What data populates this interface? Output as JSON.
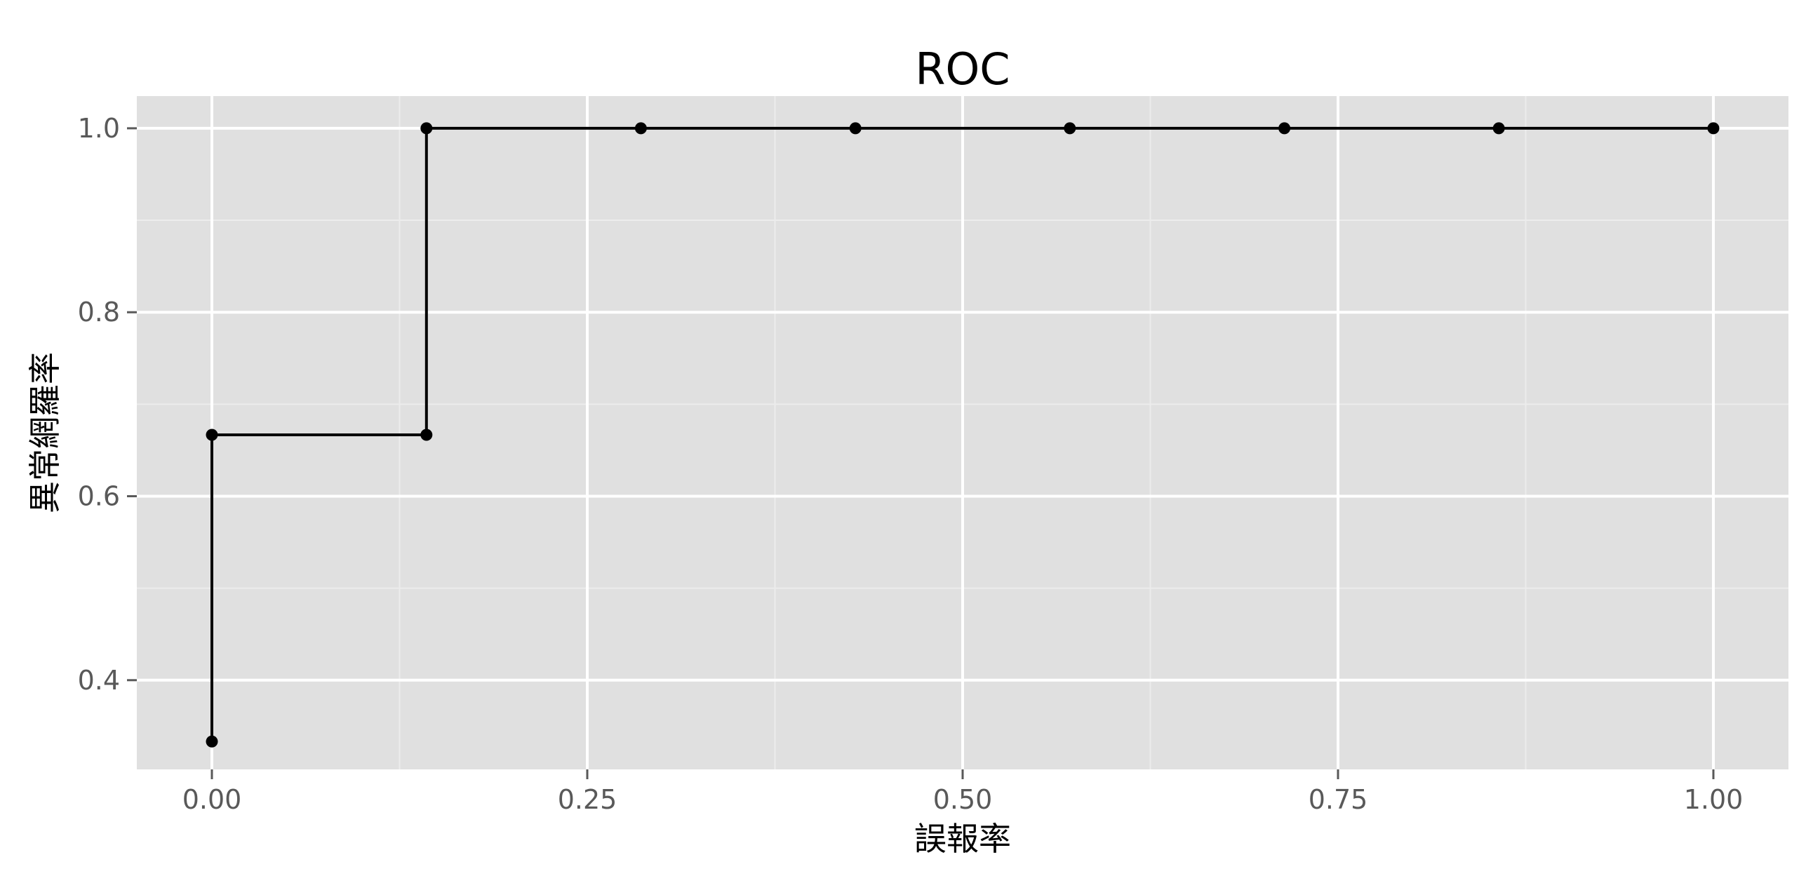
{
  "colors": {
    "panel_background": "#e0e0e0",
    "major_grid": "#ffffff",
    "minor_grid": "#ececec",
    "line": "#000000",
    "point": "#000000",
    "tick": "#595959"
  },
  "chart_data": {
    "type": "line",
    "title": "ROC",
    "xlabel": "誤報率",
    "ylabel": "異常網羅率",
    "xlim": [
      -0.05,
      1.05
    ],
    "ylim": [
      0.303,
      1.035
    ],
    "grid": true,
    "x_ticks": [
      0,
      0.25,
      0.5,
      0.75,
      1.0
    ],
    "x_tick_labels": [
      "0.00",
      "0.25",
      "0.50",
      "0.75",
      "1.00"
    ],
    "x_minor_ticks": [
      0.125,
      0.375,
      0.625,
      0.875
    ],
    "y_ticks": [
      0.4,
      0.6,
      0.8,
      1.0
    ],
    "y_tick_labels": [
      "0.4",
      "0.6",
      "0.8",
      "1.0"
    ],
    "y_minor_ticks": [
      0.5,
      0.7,
      0.9
    ],
    "step": "vertical-then-horizontal",
    "series": [
      {
        "x": [
          0.0,
          0.0,
          0.1429,
          0.1429,
          0.2857,
          0.4286,
          0.5714,
          0.7143,
          0.8571,
          1.0
        ],
        "y": [
          0.3333,
          0.6667,
          0.6667,
          1.0,
          1.0,
          1.0,
          1.0,
          1.0,
          1.0,
          1.0
        ]
      }
    ]
  }
}
